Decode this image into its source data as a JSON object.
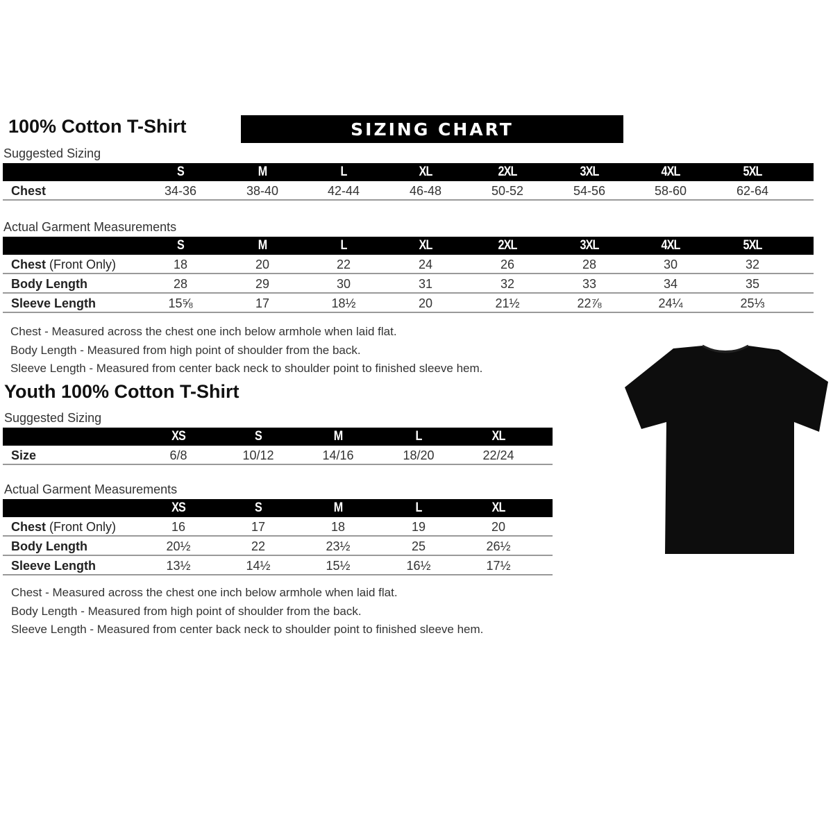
{
  "adult": {
    "title": "100% Cotton T-Shirt",
    "banner": "SIZING CHART",
    "suggested": {
      "heading": "Suggested Sizing",
      "sizes": [
        "S",
        "M",
        "L",
        "XL",
        "2XL",
        "3XL",
        "4XL",
        "5XL"
      ],
      "rows": [
        {
          "label": "Chest",
          "label_suffix": "",
          "values": [
            "34-36",
            "38-40",
            "42-44",
            "46-48",
            "50-52",
            "54-56",
            "58-60",
            "62-64"
          ]
        }
      ]
    },
    "actual": {
      "heading": "Actual Garment Measurements",
      "sizes": [
        "S",
        "M",
        "L",
        "XL",
        "2XL",
        "3XL",
        "4XL",
        "5XL"
      ],
      "rows": [
        {
          "label": "Chest",
          "label_suffix": " (Front Only)",
          "values": [
            "18",
            "20",
            "22",
            "24",
            "26",
            "28",
            "30",
            "32"
          ]
        },
        {
          "label": "Body Length",
          "label_suffix": "",
          "values": [
            "28",
            "29",
            "30",
            "31",
            "32",
            "33",
            "34",
            "35"
          ]
        },
        {
          "label": "Sleeve Length",
          "label_suffix": "",
          "values": [
            "15⅝",
            "17",
            "18½",
            "20",
            "21½",
            "22⅞",
            "24¼",
            "25⅓"
          ]
        }
      ]
    },
    "notes": [
      "Chest - Measured across the chest one inch below armhole when laid flat.",
      "Body Length - Measured from high point of shoulder from the back.",
      "Sleeve Length - Measured from center back neck to shoulder point to finished sleeve hem."
    ]
  },
  "youth": {
    "title": "Youth 100% Cotton T-Shirt",
    "suggested": {
      "heading": "Suggested Sizing",
      "sizes": [
        "XS",
        "S",
        "M",
        "L",
        "XL"
      ],
      "rows": [
        {
          "label": "Size",
          "label_suffix": "",
          "values": [
            "6/8",
            "10/12",
            "14/16",
            "18/20",
            "22/24"
          ]
        }
      ]
    },
    "actual": {
      "heading": "Actual Garment Measurements",
      "sizes": [
        "XS",
        "S",
        "M",
        "L",
        "XL"
      ],
      "rows": [
        {
          "label": "Chest",
          "label_suffix": " (Front Only)",
          "values": [
            "16",
            "17",
            "18",
            "19",
            "20"
          ]
        },
        {
          "label": "Body Length",
          "label_suffix": "",
          "values": [
            "20½",
            "22",
            "23½",
            "25",
            "26½"
          ]
        },
        {
          "label": "Sleeve Length",
          "label_suffix": "",
          "values": [
            "13½",
            "14½",
            "15½",
            "16½",
            "17½"
          ]
        }
      ]
    },
    "notes": [
      "Chest - Measured across the chest one inch below armhole when laid flat.",
      "Body Length - Measured from high point of shoulder from the back.",
      "Sleeve Length - Measured from center back neck to shoulder point to finished sleeve hem."
    ]
  },
  "image": {
    "icon": "black-tshirt",
    "color": "#0d0d0d"
  }
}
